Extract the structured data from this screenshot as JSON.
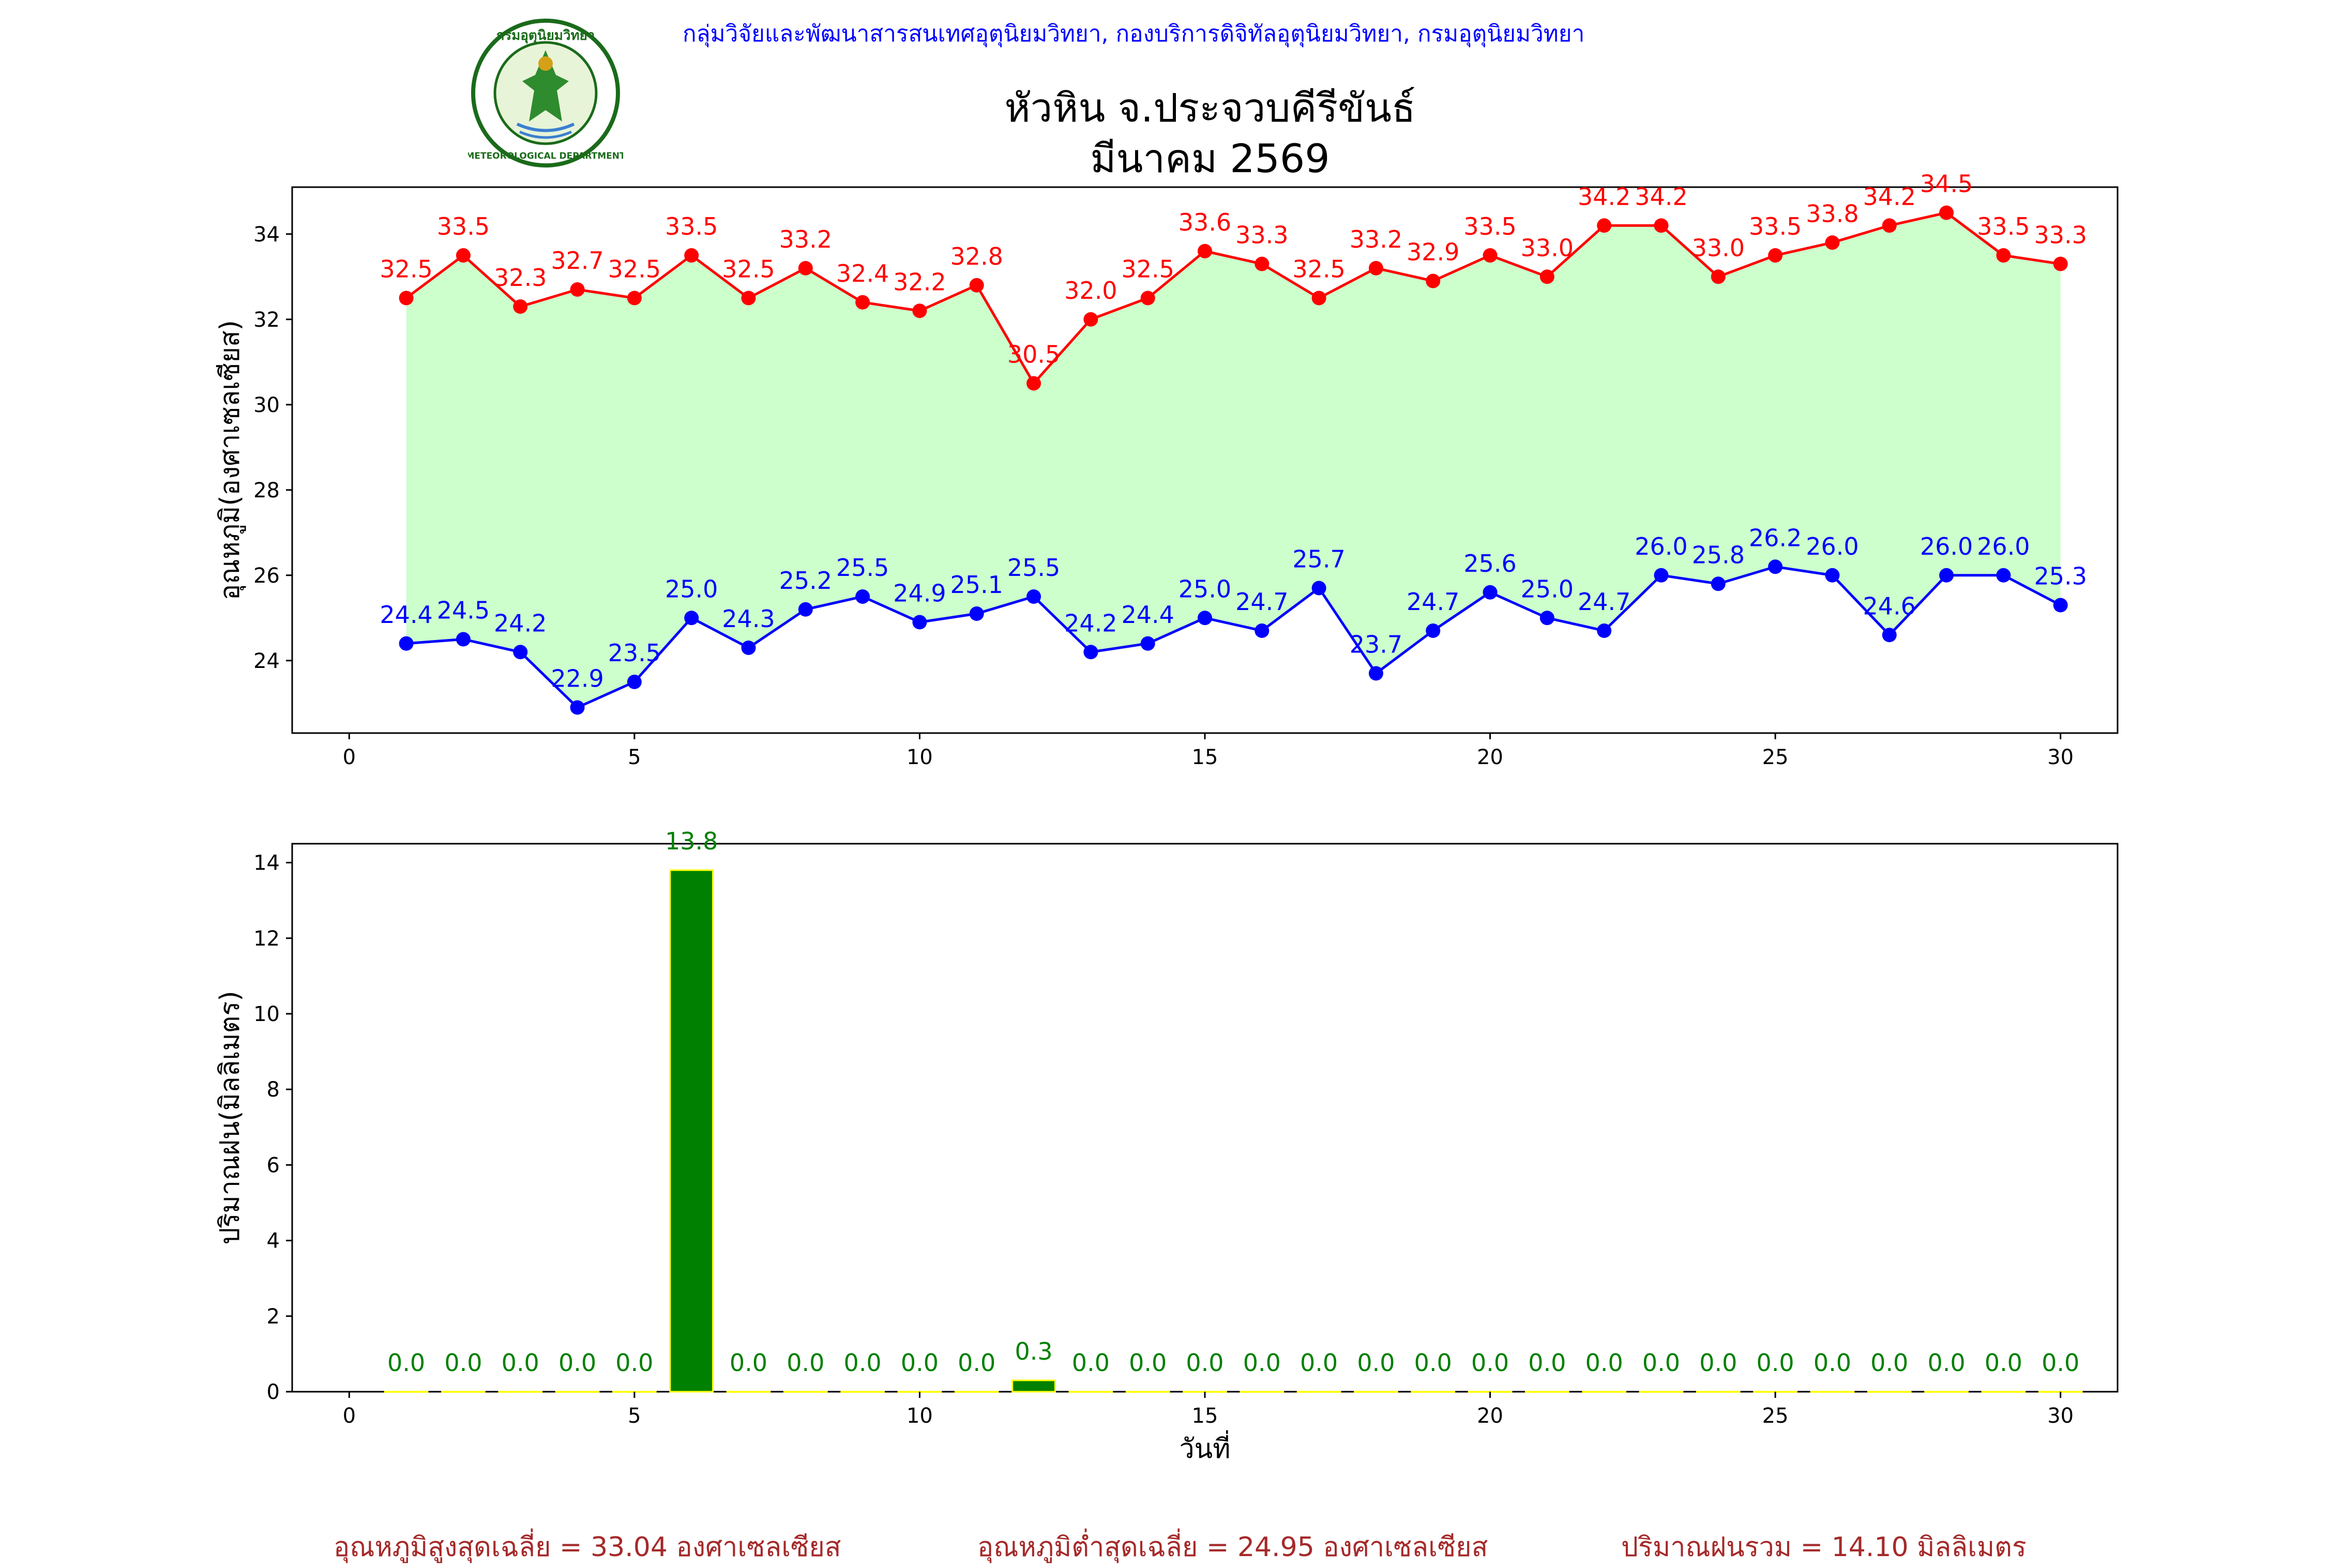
{
  "header": {
    "institution": "กลุ่มวิจัยและพัฒนาสารสนเทศอุตุนิยมวิทยา, กองบริการดิจิทัลอุตุนิยมวิทยา, กรมอุตุนิยมวิทยา",
    "title_line1": "หัวหิน จ.ประจวบคีรีขันธ์",
    "title_line2": "มีนาคม 2569",
    "logo_top_text": "กรมอุตุนิยมวิทยา",
    "logo_bottom_text": "METEOROLOGICAL DEPARTMENT"
  },
  "colors": {
    "max_line": "#ff0000",
    "min_line": "#0000ff",
    "fill": "#ccffcc",
    "rain_bar": "#008000",
    "rain_edge": "#ffff00",
    "rain_label": "#008000",
    "footer": "#a52a2a"
  },
  "chart_data": [
    {
      "type": "line",
      "ylabel": "อุณหภูมิ(องศาเซลเซียส)",
      "xlim": [
        -1,
        31
      ],
      "ylim": [
        22.3,
        35.1
      ],
      "xticks": [
        0,
        5,
        10,
        15,
        20,
        25,
        30
      ],
      "yticks": [
        24,
        26,
        28,
        30,
        32,
        34
      ],
      "x": [
        1,
        2,
        3,
        4,
        5,
        6,
        7,
        8,
        9,
        10,
        11,
        12,
        13,
        14,
        15,
        16,
        17,
        18,
        19,
        20,
        21,
        22,
        23,
        24,
        25,
        26,
        27,
        28,
        29,
        30
      ],
      "series": [
        {
          "key": "max",
          "values": [
            32.5,
            33.5,
            32.3,
            32.7,
            32.5,
            33.5,
            32.5,
            33.2,
            32.4,
            32.2,
            32.8,
            30.5,
            32.0,
            32.5,
            33.6,
            33.3,
            32.5,
            33.2,
            32.9,
            33.5,
            33.0,
            34.2,
            34.2,
            33.0,
            33.5,
            33.8,
            34.2,
            34.5,
            33.5,
            33.3
          ],
          "labels": [
            "32.5",
            "33.5",
            "32.3",
            "32.7",
            "32.5",
            "33.5",
            "32.5",
            "33.2",
            "32.4",
            "32.2",
            "32.8",
            "30.5",
            "32.0",
            "32.5",
            "33.6",
            "33.3",
            "32.5",
            "33.2",
            "32.9",
            "33.5",
            "33.0",
            "34.2",
            "34.2",
            "33.0",
            "33.5",
            "33.8",
            "34.2",
            "34.5",
            "33.5",
            "33.3"
          ]
        },
        {
          "key": "min",
          "values": [
            24.4,
            24.5,
            24.2,
            22.9,
            23.5,
            25.0,
            24.3,
            25.2,
            25.5,
            24.9,
            25.1,
            25.5,
            24.2,
            24.4,
            25.0,
            24.7,
            25.7,
            23.7,
            24.7,
            25.6,
            25.0,
            24.7,
            26.0,
            25.8,
            26.2,
            26.0,
            24.6,
            26.0,
            26.0,
            25.3
          ],
          "labels": [
            "24.4",
            "24.5",
            "24.2",
            "22.9",
            "23.5",
            "25.0",
            "24.3",
            "25.2",
            "25.5",
            "24.9",
            "25.1",
            "25.5",
            "24.2",
            "24.4",
            "25.0",
            "24.7",
            "25.7",
            "23.7",
            "24.7",
            "25.6",
            "25.0",
            "24.7",
            "26.0",
            "25.8",
            "26.2",
            "26.0",
            "24.6",
            "26.0",
            "26.0",
            "25.3"
          ]
        }
      ]
    },
    {
      "type": "bar",
      "xlabel": "วันที่",
      "ylabel": "ปริมาณฝน(มิลลิเมตร)",
      "xlim": [
        -1,
        31
      ],
      "ylim": [
        0,
        14.5
      ],
      "xticks": [
        0,
        5,
        10,
        15,
        20,
        25,
        30
      ],
      "yticks": [
        0,
        2,
        4,
        6,
        8,
        10,
        12,
        14
      ],
      "x": [
        1,
        2,
        3,
        4,
        5,
        6,
        7,
        8,
        9,
        10,
        11,
        12,
        13,
        14,
        15,
        16,
        17,
        18,
        19,
        20,
        21,
        22,
        23,
        24,
        25,
        26,
        27,
        28,
        29,
        30
      ],
      "values": [
        0,
        0,
        0,
        0,
        0,
        13.8,
        0,
        0,
        0,
        0,
        0,
        0.3,
        0,
        0,
        0,
        0,
        0,
        0,
        0,
        0,
        0,
        0,
        0,
        0,
        0,
        0,
        0,
        0,
        0,
        0
      ],
      "labels": [
        "0.0",
        "0.0",
        "0.0",
        "0.0",
        "0.0",
        "13.8",
        "0.0",
        "0.0",
        "0.0",
        "0.0",
        "0.0",
        "0.3",
        "0.0",
        "0.0",
        "0.0",
        "0.0",
        "0.0",
        "0.0",
        "0.0",
        "0.0",
        "0.0",
        "0.0",
        "0.0",
        "0.0",
        "0.0",
        "0.0",
        "0.0",
        "0.0",
        "0.0",
        "0.0"
      ]
    }
  ],
  "footer": {
    "avg_max": "อุณหภูมิสูงสุดเฉลี่ย = 33.04 องศาเซลเซียส",
    "avg_min": "อุณหภูมิต่ำสุดเฉลี่ย = 24.95 องศาเซลเซียส",
    "total_rain": "ปริมาณฝนรวม = 14.10 มิลลิเมตร"
  }
}
